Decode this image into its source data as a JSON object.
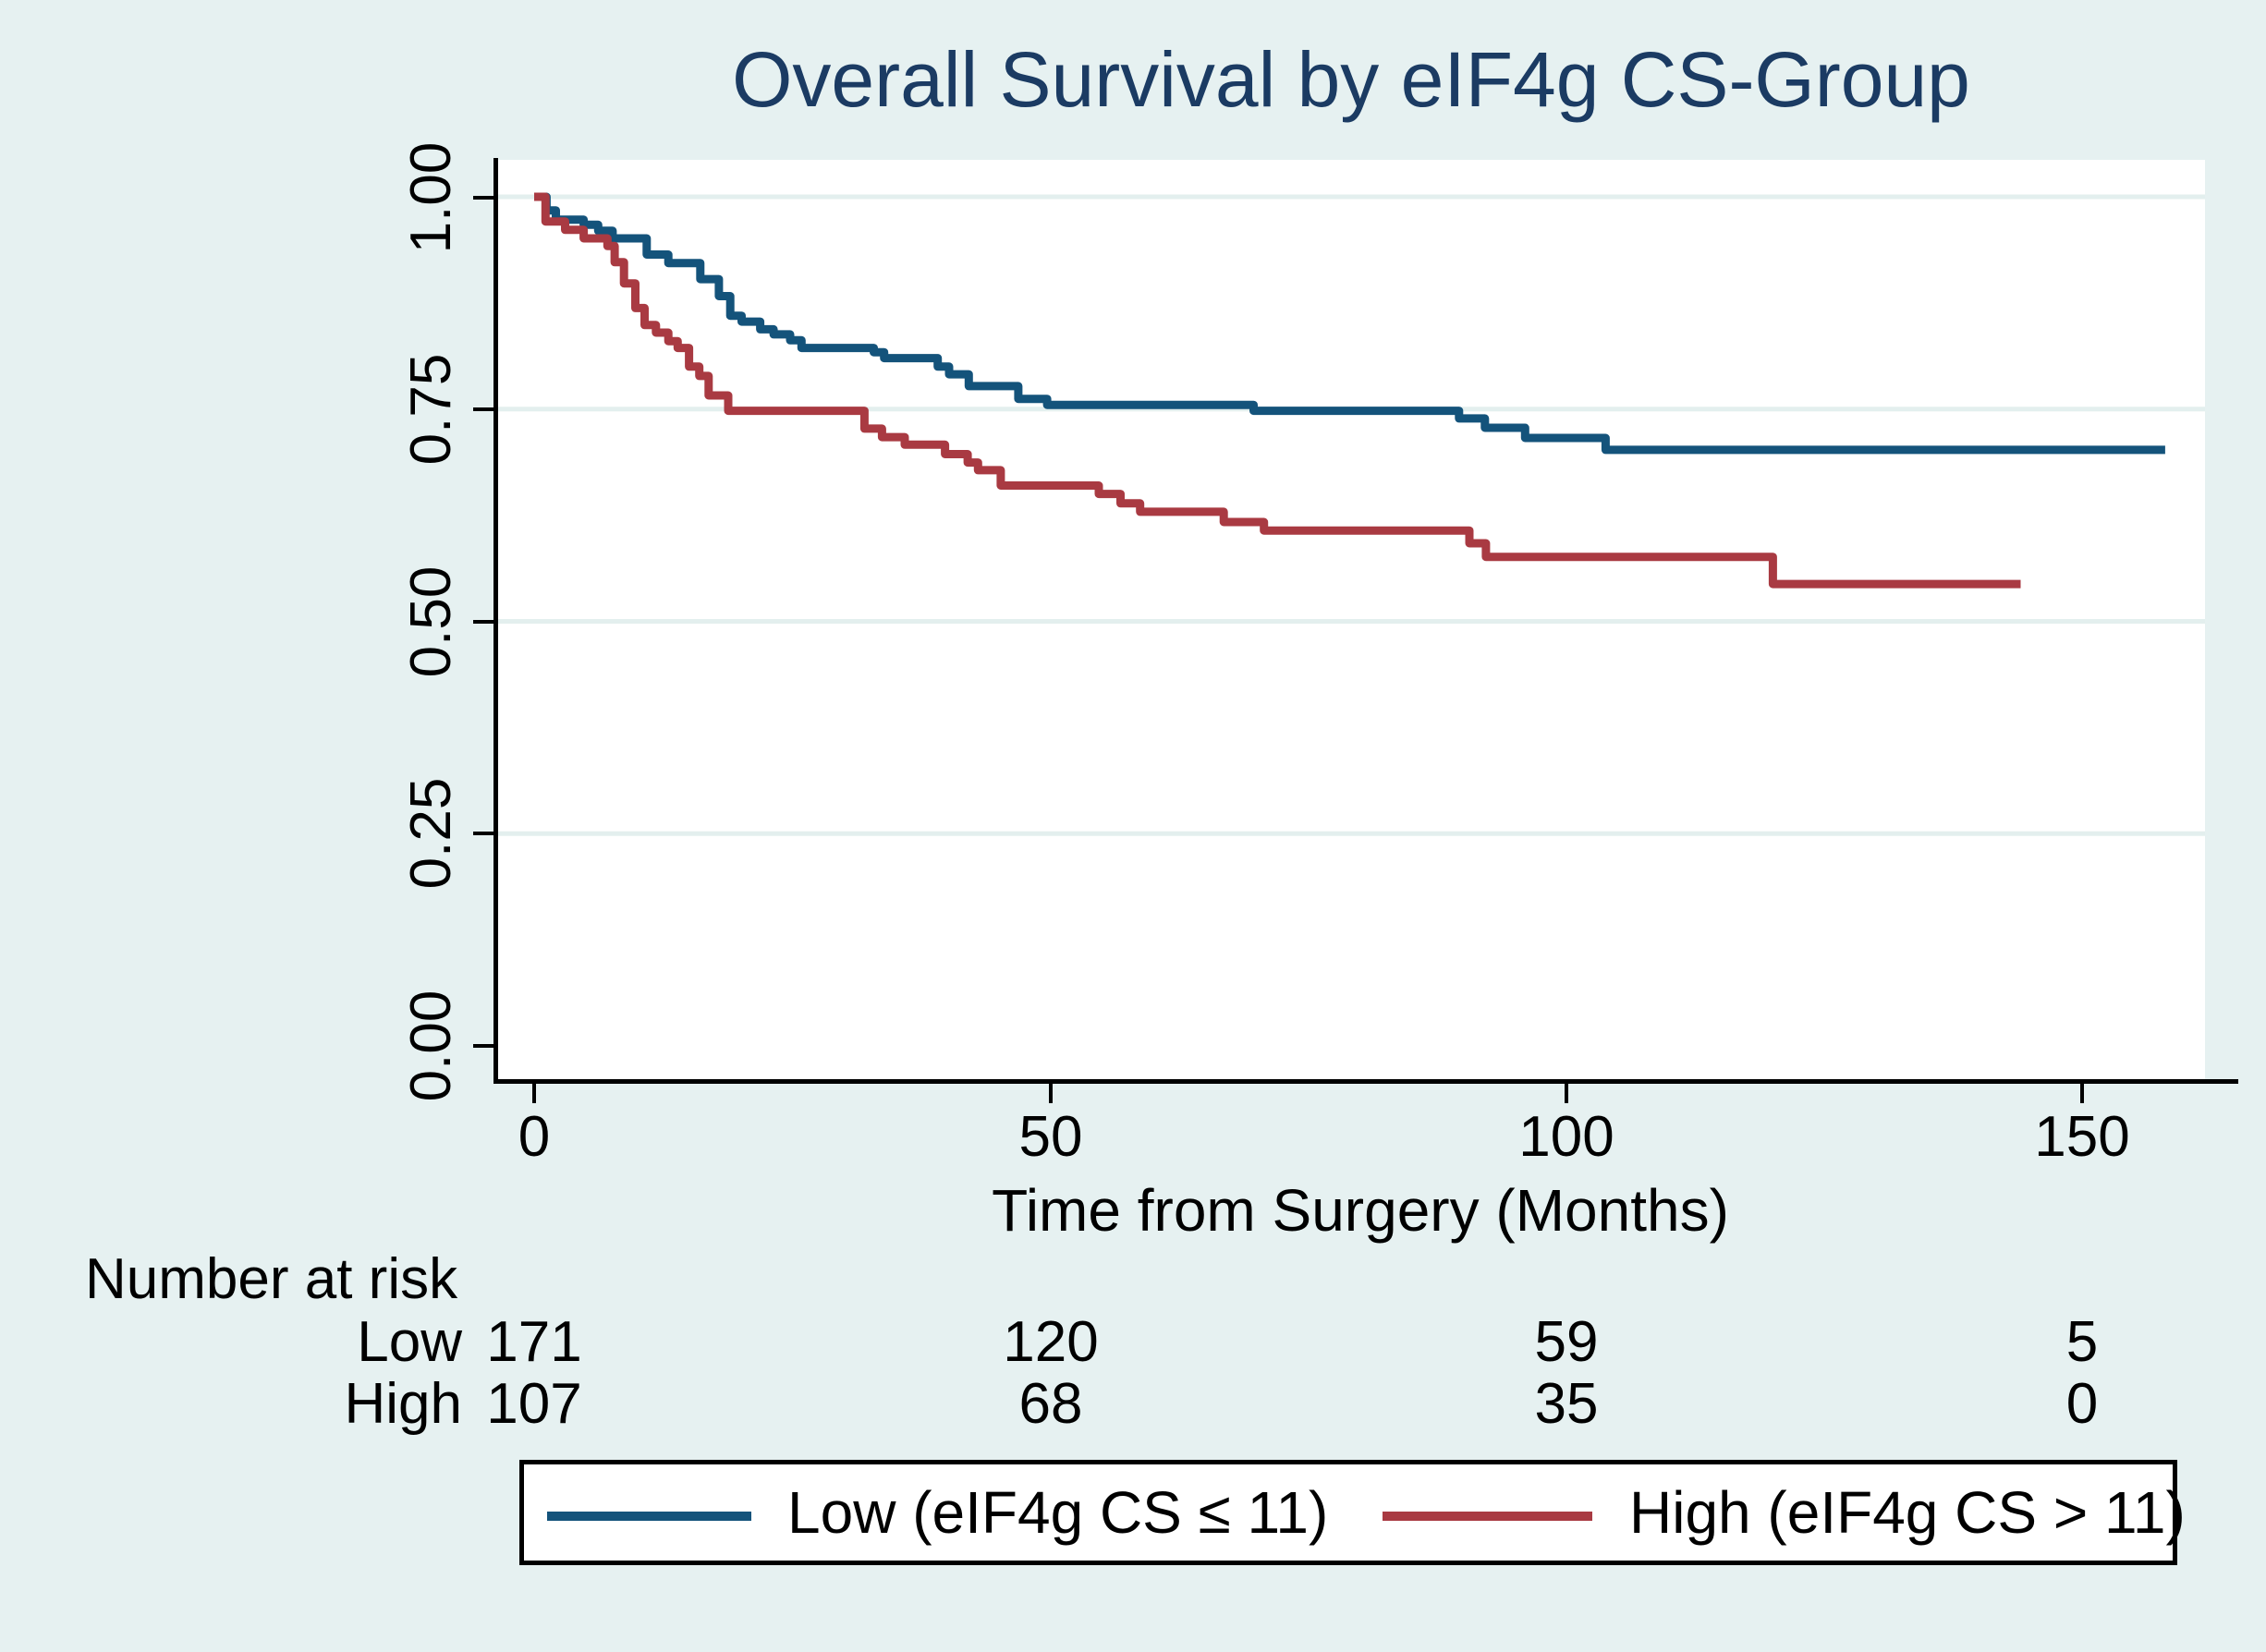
{
  "chart_data": {
    "type": "line",
    "subtype": "kaplan-meier-step",
    "title": "Overall Survival by eIF4g CS-Group",
    "xlabel": "Time from Surgery (Months)",
    "ylabel": "",
    "x_ticks": [
      "0",
      "50",
      "100",
      "150"
    ],
    "x_tick_values": [
      0,
      50,
      100,
      150
    ],
    "y_ticks": [
      "0.00",
      "0.25",
      "0.50",
      "0.75",
      "1.00"
    ],
    "y_tick_values": [
      0.0,
      0.25,
      0.5,
      0.75,
      1.0
    ],
    "xlim": [
      -3.6,
      162
    ],
    "ylim": [
      -0.04,
      1.04
    ],
    "grid": "horizontal",
    "grid_values": [
      0.25,
      0.5,
      0.75,
      1.0
    ],
    "colors": {
      "background": "#e6f1f1",
      "plot_background": "#ffffff",
      "gridline": "#e3efee",
      "axis": "#000000",
      "title": "#1b3b63",
      "low_series": "#14537b",
      "high_series": "#a93a42"
    },
    "series": [
      {
        "name": "Low (eIF4g CS ≤ 11)",
        "group": "Low",
        "color": "#14537b",
        "end_t": 158,
        "steps": [
          [
            0,
            1.0
          ],
          [
            1.2,
            0.984
          ],
          [
            2.1,
            0.973
          ],
          [
            4.8,
            0.967
          ],
          [
            6.2,
            0.96
          ],
          [
            7.6,
            0.951
          ],
          [
            10.9,
            0.932
          ],
          [
            13.0,
            0.922
          ],
          [
            16.1,
            0.903
          ],
          [
            17.9,
            0.883
          ],
          [
            19.0,
            0.86
          ],
          [
            20.1,
            0.853
          ],
          [
            21.9,
            0.844
          ],
          [
            23.2,
            0.838
          ],
          [
            24.8,
            0.831
          ],
          [
            25.9,
            0.822
          ],
          [
            32.9,
            0.817
          ],
          [
            33.9,
            0.81
          ],
          [
            39.1,
            0.8
          ],
          [
            40.2,
            0.791
          ],
          [
            42.1,
            0.777
          ],
          [
            46.9,
            0.762
          ],
          [
            49.7,
            0.755
          ],
          [
            69.7,
            0.748
          ],
          [
            89.6,
            0.739
          ],
          [
            92.1,
            0.728
          ],
          [
            96.0,
            0.716
          ],
          [
            103.8,
            0.702
          ]
        ]
      },
      {
        "name": "High (eIF4g CS > 11)",
        "group": "High",
        "color": "#a93a42",
        "end_t": 144,
        "steps": [
          [
            0,
            1.0
          ],
          [
            1.1,
            0.971
          ],
          [
            3.0,
            0.961
          ],
          [
            4.8,
            0.951
          ],
          [
            7.1,
            0.942
          ],
          [
            7.8,
            0.923
          ],
          [
            8.7,
            0.898
          ],
          [
            9.8,
            0.869
          ],
          [
            10.7,
            0.849
          ],
          [
            11.8,
            0.84
          ],
          [
            13.0,
            0.83
          ],
          [
            13.9,
            0.822
          ],
          [
            15.0,
            0.8
          ],
          [
            16.0,
            0.789
          ],
          [
            16.9,
            0.766
          ],
          [
            18.8,
            0.748
          ],
          [
            32.0,
            0.727
          ],
          [
            33.7,
            0.717
          ],
          [
            35.9,
            0.708
          ],
          [
            39.8,
            0.697
          ],
          [
            42.0,
            0.687
          ],
          [
            43.0,
            0.678
          ],
          [
            45.2,
            0.66
          ],
          [
            54.7,
            0.65
          ],
          [
            56.8,
            0.639
          ],
          [
            58.7,
            0.629
          ],
          [
            66.8,
            0.617
          ],
          [
            70.7,
            0.607
          ],
          [
            90.6,
            0.592
          ],
          [
            92.2,
            0.576
          ],
          [
            120.0,
            0.544
          ]
        ]
      }
    ],
    "risk_table": {
      "header": "Number at risk",
      "times": [
        0,
        50,
        100,
        150
      ],
      "rows": [
        {
          "name": "Low",
          "counts": [
            "171",
            "120",
            "59",
            "5"
          ]
        },
        {
          "name": "High",
          "counts": [
            "107",
            "68",
            "35",
            "0"
          ]
        }
      ]
    },
    "legend": {
      "position": "bottom",
      "items": [
        {
          "label": "Low (eIF4g CS ≤ 11)",
          "color": "#14537b"
        },
        {
          "label": "High (eIF4g CS > 11)",
          "color": "#a93a42"
        }
      ]
    }
  }
}
